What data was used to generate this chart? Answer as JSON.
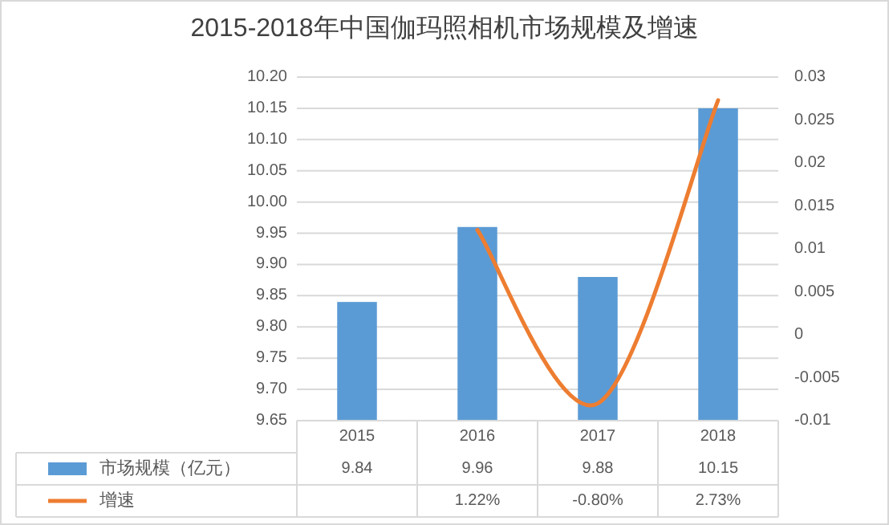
{
  "chart_data": {
    "type": "bar",
    "title": "2015-2018年中国伽玛照相机市场规模及增速",
    "categories": [
      "2015",
      "2016",
      "2017",
      "2018"
    ],
    "series": [
      {
        "name": "市场规模（亿元）",
        "color": "#5b9bd5",
        "values": [
          9.84,
          9.96,
          9.88,
          10.15
        ],
        "value_labels": [
          "9.84",
          "9.96",
          "9.88",
          "10.15"
        ]
      },
      {
        "name": "增速",
        "type": "line",
        "axis": "y2",
        "color": "#ed7d31",
        "values": [
          null,
          0.0122,
          -0.008,
          0.0273
        ],
        "value_labels": [
          null,
          "1.22%",
          "-0.80%",
          "2.73%"
        ]
      }
    ],
    "ylim": [
      9.65,
      10.2
    ],
    "yticks": [
      {
        "value": 9.65,
        "label": "9.65"
      },
      {
        "value": 9.7,
        "label": "9.70"
      },
      {
        "value": 9.75,
        "label": "9.75"
      },
      {
        "value": 9.8,
        "label": "9.80"
      },
      {
        "value": 9.85,
        "label": "9.85"
      },
      {
        "value": 9.9,
        "label": "9.90"
      },
      {
        "value": 9.95,
        "label": "9.95"
      },
      {
        "value": 10,
        "label": "10.00"
      },
      {
        "value": 10.05,
        "label": "10.05"
      },
      {
        "value": 10.1,
        "label": "10.10"
      },
      {
        "value": 10.15,
        "label": "10.15"
      },
      {
        "value": 10.2,
        "label": "10.20"
      }
    ],
    "y2lim": [
      -0.01,
      0.03
    ],
    "y2ticks": [
      -0.01,
      -0.005,
      0,
      0.005,
      0.01,
      0.015,
      0.02,
      0.025,
      0.03
    ],
    "grid": "y",
    "legend": "bottom"
  }
}
